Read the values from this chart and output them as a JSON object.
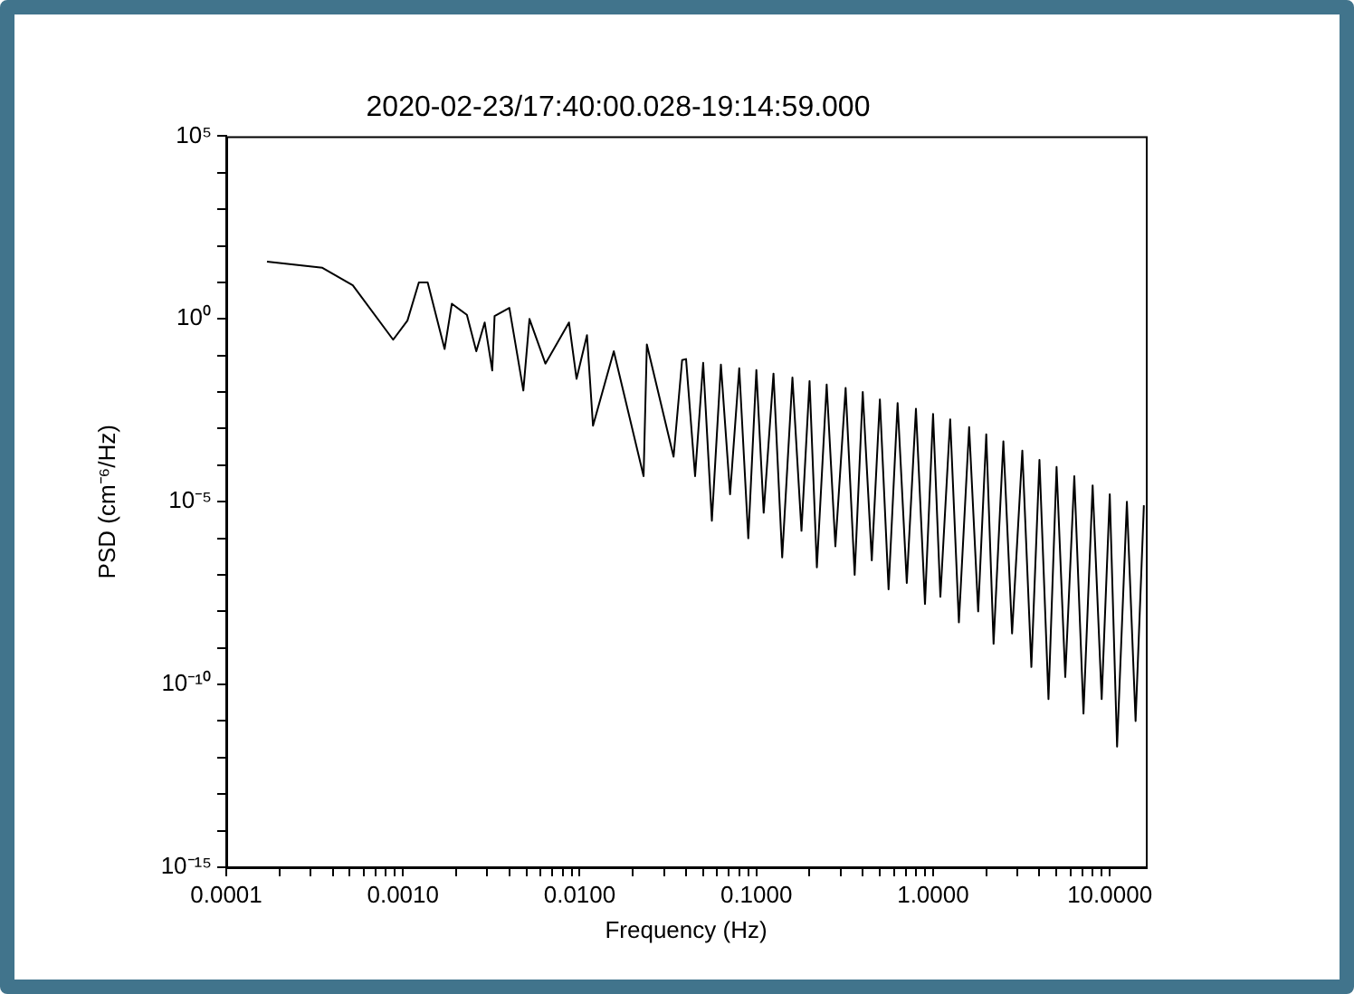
{
  "chart_data": {
    "type": "line",
    "title": "2020-02-23/17:40:00.028-19:14:59.000",
    "xlabel": "Frequency (Hz)",
    "ylabel": "PSD (cm⁻⁶/Hz)",
    "log": "xy",
    "grid": false,
    "legend": false,
    "marker": "none",
    "line_style": "solid",
    "xlim": [
      0.0001,
      16
    ],
    "ylim": [
      1e-15,
      100000
    ],
    "xticks": [
      {
        "value": 0.0001,
        "label": "0.0001"
      },
      {
        "value": 0.0002,
        "label": null
      },
      {
        "value": 0.0003,
        "label": null
      },
      {
        "value": 0.0004,
        "label": null
      },
      {
        "value": 0.0005,
        "label": null
      },
      {
        "value": 0.0006,
        "label": null
      },
      {
        "value": 0.0007,
        "label": null
      },
      {
        "value": 0.0008,
        "label": null
      },
      {
        "value": 0.0009,
        "label": null
      },
      {
        "value": 0.001,
        "label": "0.0010"
      },
      {
        "value": 0.002,
        "label": null
      },
      {
        "value": 0.003,
        "label": null
      },
      {
        "value": 0.004,
        "label": null
      },
      {
        "value": 0.005,
        "label": null
      },
      {
        "value": 0.006,
        "label": null
      },
      {
        "value": 0.007,
        "label": null
      },
      {
        "value": 0.008,
        "label": null
      },
      {
        "value": 0.009,
        "label": null
      },
      {
        "value": 0.01,
        "label": "0.0100"
      },
      {
        "value": 0.02,
        "label": null
      },
      {
        "value": 0.03,
        "label": null
      },
      {
        "value": 0.04,
        "label": null
      },
      {
        "value": 0.05,
        "label": null
      },
      {
        "value": 0.06,
        "label": null
      },
      {
        "value": 0.07,
        "label": null
      },
      {
        "value": 0.08,
        "label": null
      },
      {
        "value": 0.09,
        "label": null
      },
      {
        "value": 0.1,
        "label": "0.1000"
      },
      {
        "value": 0.2,
        "label": null
      },
      {
        "value": 0.3,
        "label": null
      },
      {
        "value": 0.4,
        "label": null
      },
      {
        "value": 0.5,
        "label": null
      },
      {
        "value": 0.6,
        "label": null
      },
      {
        "value": 0.7,
        "label": null
      },
      {
        "value": 0.8,
        "label": null
      },
      {
        "value": 0.9,
        "label": null
      },
      {
        "value": 1,
        "label": "1.0000"
      },
      {
        "value": 2,
        "label": null
      },
      {
        "value": 3,
        "label": null
      },
      {
        "value": 4,
        "label": null
      },
      {
        "value": 5,
        "label": null
      },
      {
        "value": 6,
        "label": null
      },
      {
        "value": 7,
        "label": null
      },
      {
        "value": 8,
        "label": null
      },
      {
        "value": 9,
        "label": null
      },
      {
        "value": 10,
        "label": "10.0000"
      }
    ],
    "yticks": [
      {
        "value": 1e-15,
        "label": "10⁻¹⁵"
      },
      {
        "value": 1e-14,
        "label": null
      },
      {
        "value": 1e-13,
        "label": null
      },
      {
        "value": 1e-12,
        "label": null
      },
      {
        "value": 1e-11,
        "label": null
      },
      {
        "value": 1e-10,
        "label": "10⁻¹⁰"
      },
      {
        "value": 1e-09,
        "label": null
      },
      {
        "value": 1e-08,
        "label": null
      },
      {
        "value": 1e-07,
        "label": null
      },
      {
        "value": 1e-06,
        "label": null
      },
      {
        "value": 1e-05,
        "label": "10⁻⁵"
      },
      {
        "value": 0.0001,
        "label": null
      },
      {
        "value": 0.001,
        "label": null
      },
      {
        "value": 0.01,
        "label": null
      },
      {
        "value": 0.1,
        "label": null
      },
      {
        "value": 1,
        "label": "10⁰"
      },
      {
        "value": 10,
        "label": null
      },
      {
        "value": 100,
        "label": null
      },
      {
        "value": 1000,
        "label": null
      },
      {
        "value": 10000,
        "label": null
      },
      {
        "value": 100000,
        "label": "10⁵"
      }
    ],
    "series": [
      {
        "color": "#000000",
        "x": [
          0.00017,
          0.00035,
          0.00052,
          0.00088,
          0.00106,
          0.00123,
          0.00138,
          0.00172,
          0.00189,
          0.0023,
          0.0026,
          0.0029,
          0.0032,
          0.0033,
          0.004,
          0.0048,
          0.0052,
          0.0064,
          0.0087,
          0.0096,
          0.011,
          0.0119,
          0.0156,
          0.023,
          0.024,
          0.034,
          0.038,
          0.04,
          0.045,
          0.05,
          0.056,
          0.063,
          0.071,
          0.08,
          0.09,
          0.1,
          0.11,
          0.125,
          0.14,
          0.16,
          0.18,
          0.2,
          0.22,
          0.25,
          0.28,
          0.32,
          0.36,
          0.4,
          0.45,
          0.5,
          0.56,
          0.63,
          0.71,
          0.8,
          0.9,
          1,
          1.1,
          1.25,
          1.4,
          1.6,
          1.8,
          2,
          2.2,
          2.5,
          2.8,
          3.2,
          3.6,
          4,
          4.5,
          5,
          5.6,
          6.3,
          7.1,
          8,
          9,
          10,
          11,
          12.5,
          14,
          15.6
        ],
        "values": [
          37,
          25,
          8.3,
          0.27,
          0.9,
          10,
          10,
          0.15,
          2.6,
          1.3,
          0.13,
          0.8,
          0.039,
          1.2,
          2,
          0.011,
          1,
          0.06,
          0.8,
          0.023,
          0.36,
          0.0012,
          0.13,
          5e-05,
          0.2,
          0.00017,
          0.075,
          0.08,
          5e-05,
          0.063,
          3e-06,
          0.056,
          1.6e-05,
          0.045,
          1e-06,
          0.04,
          5e-06,
          0.032,
          3e-07,
          0.025,
          1.6e-06,
          0.02,
          1.6e-07,
          0.016,
          6e-07,
          0.013,
          1e-07,
          0.01,
          2.5e-07,
          0.0063,
          4e-08,
          0.005,
          6e-08,
          0.0035,
          1.6e-08,
          0.0025,
          2.5e-08,
          0.0018,
          5e-09,
          0.0011,
          1e-08,
          0.0007,
          1.3e-09,
          0.00045,
          2.5e-09,
          0.00025,
          3e-10,
          0.00014,
          4e-11,
          9e-05,
          1.6e-10,
          5e-05,
          1.6e-11,
          2.8e-05,
          4e-11,
          1.6e-05,
          2e-12,
          1e-05,
          1e-11,
          8e-06
        ]
      }
    ]
  }
}
